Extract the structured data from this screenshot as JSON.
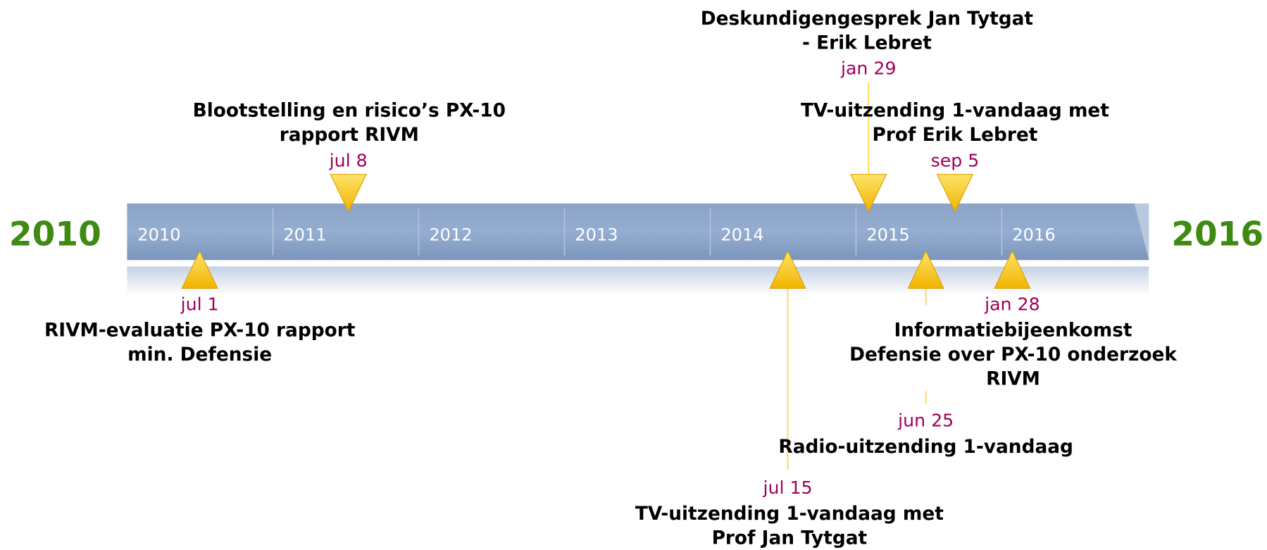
{
  "timeline": {
    "start_label": "2010",
    "end_label": "2016",
    "years": [
      "2010",
      "2011",
      "2012",
      "2013",
      "2014",
      "2015",
      "2016"
    ],
    "events": [
      {
        "date": "jul 1",
        "title": [
          "RIVM-evaluatie PX-10 rapport",
          "min. Defensie"
        ]
      },
      {
        "date": "jul 8",
        "title": [
          "Blootstelling en risico’s PX-10",
          "rapport RIVM"
        ]
      },
      {
        "date": "jul 15",
        "title": [
          "TV-uitzending 1-vandaag met",
          "Prof Jan Tytgat"
        ]
      },
      {
        "date": "jan 29",
        "title": [
          "Deskundigengesprek Jan Tytgat",
          "- Erik Lebret"
        ]
      },
      {
        "date": "jun 25",
        "title": [
          "Radio-uitzending 1-vandaag"
        ]
      },
      {
        "date": "sep 5",
        "title": [
          "TV-uitzending 1-vandaag met",
          "Prof Erik Lebret"
        ]
      },
      {
        "date": "jan 28",
        "title": [
          "Informatiebijeenkomst",
          "Defensie over PX-10 onderzoek",
          "RIVM"
        ]
      }
    ]
  }
}
